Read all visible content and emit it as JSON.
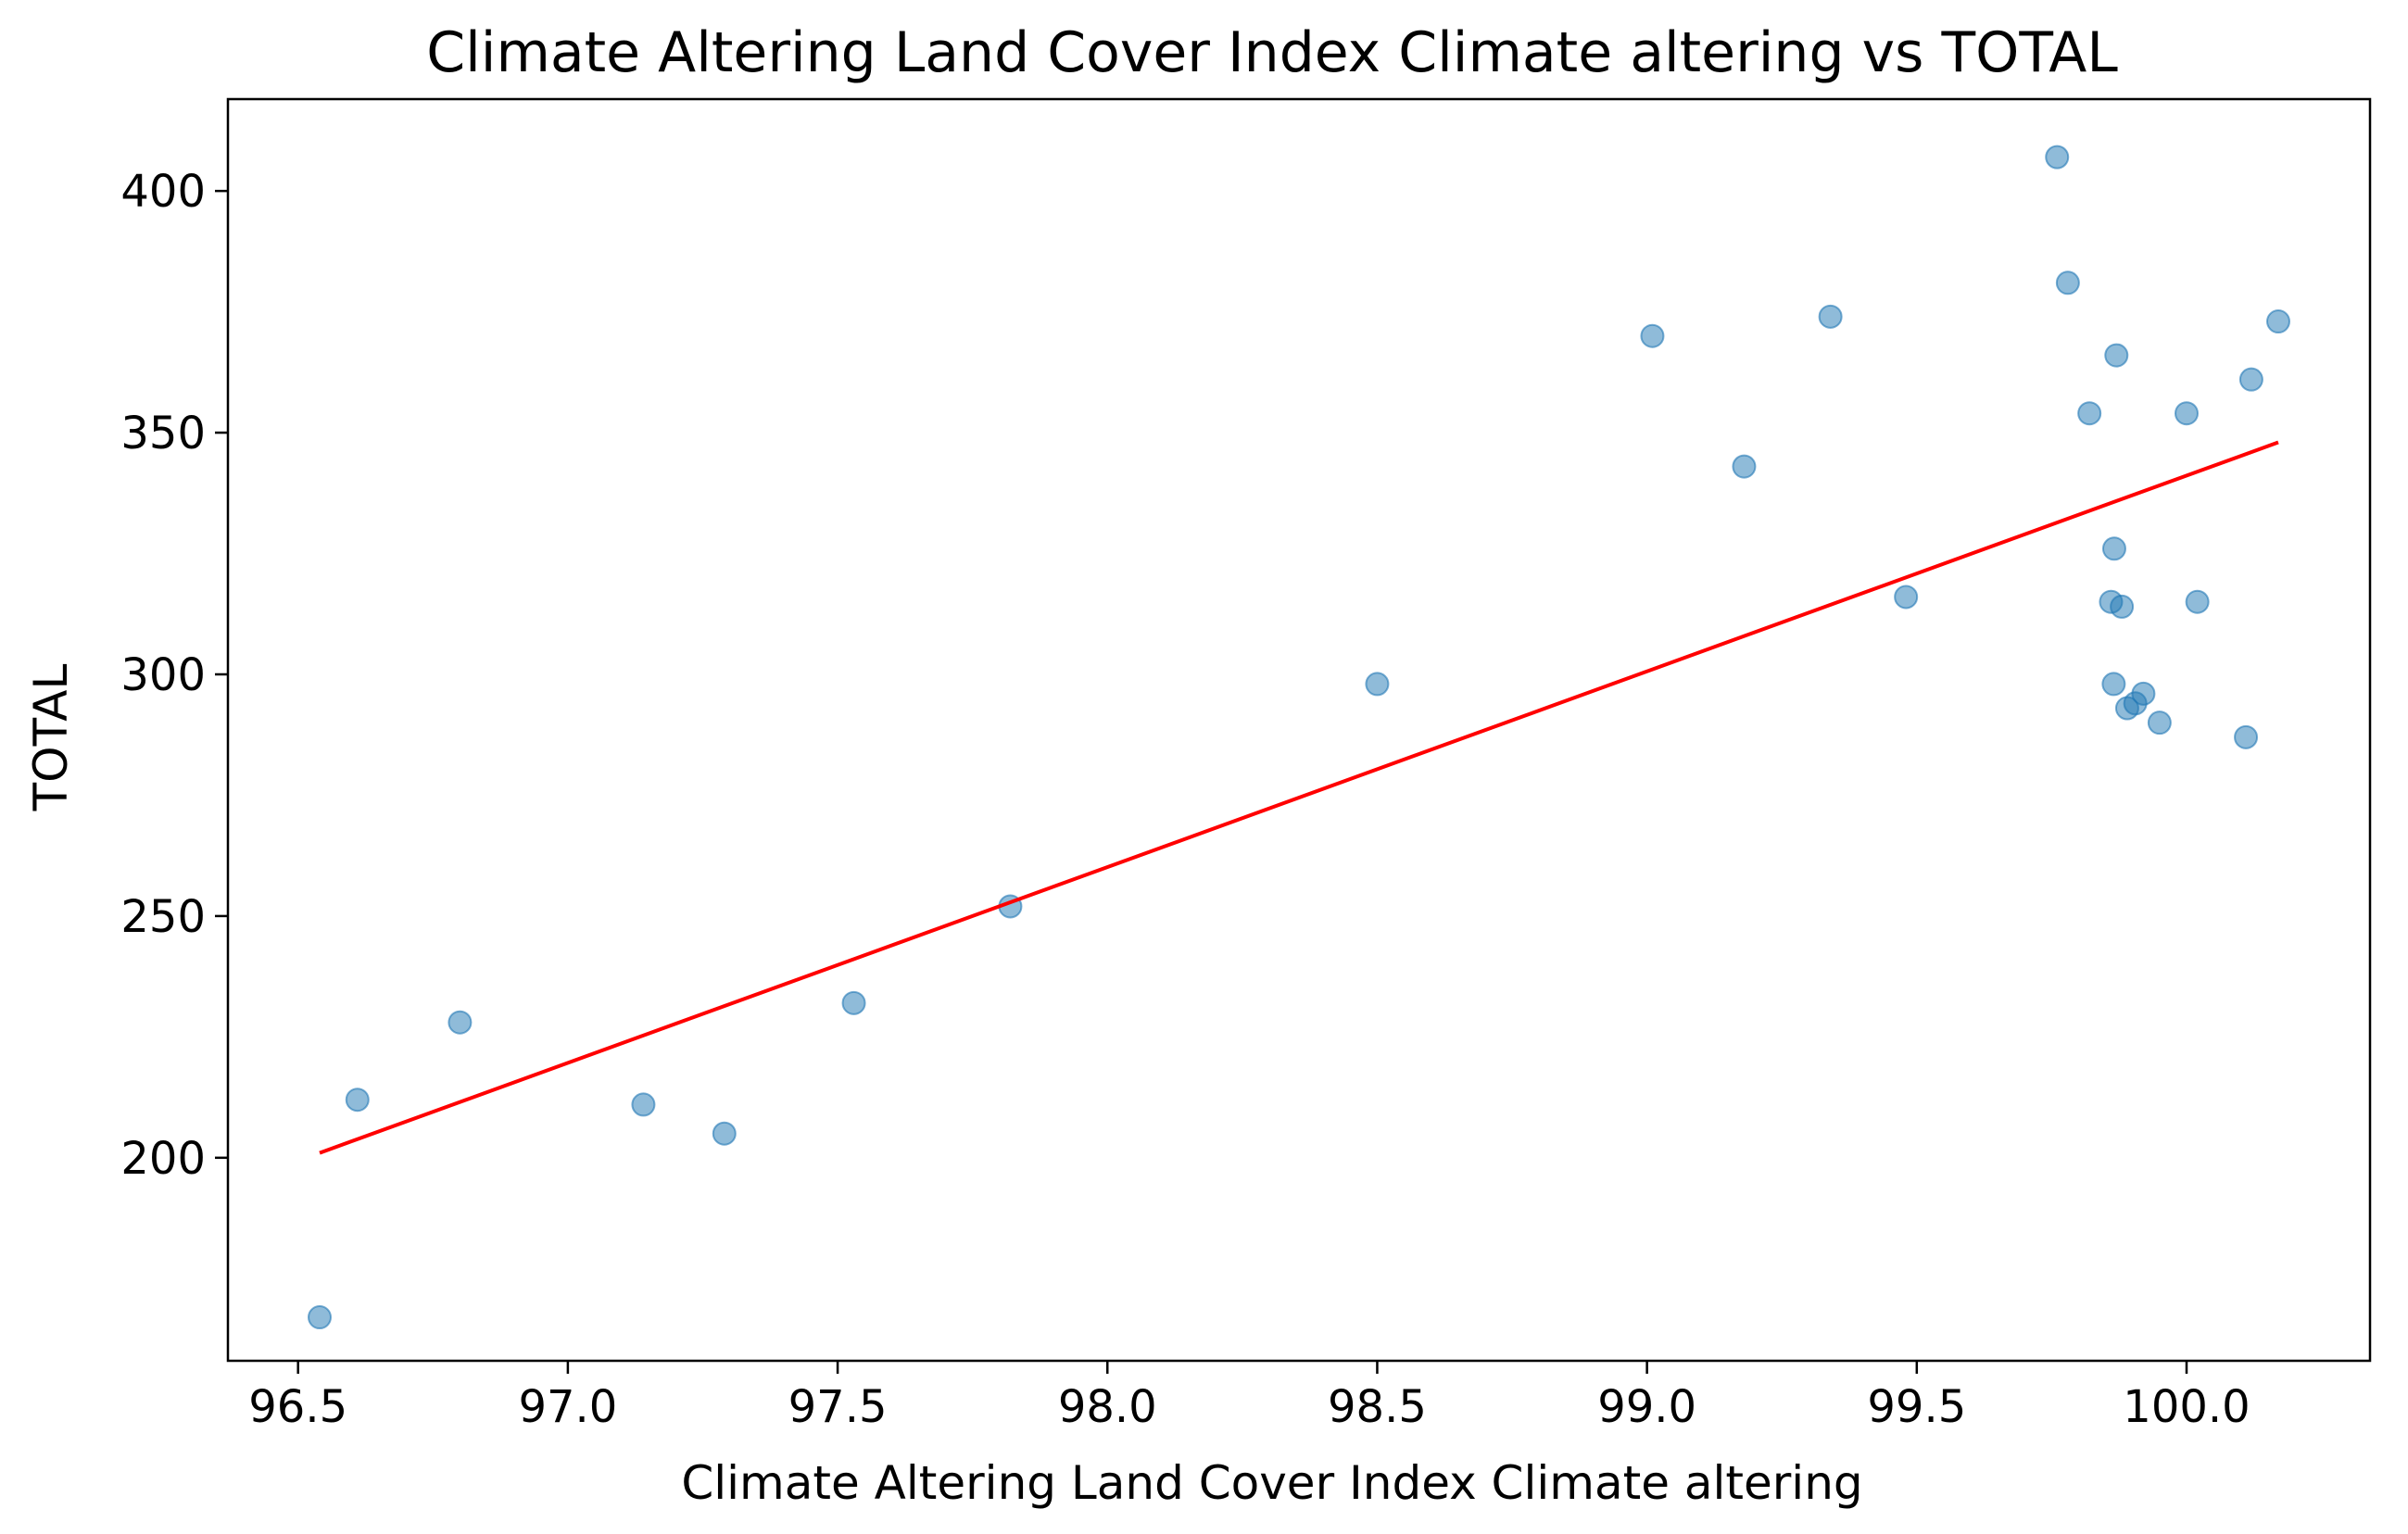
{
  "chart_data": {
    "type": "scatter",
    "title": "Climate Altering Land Cover Index Climate altering vs TOTAL",
    "xlabel": "Climate Altering Land Cover Index Climate altering",
    "ylabel": "TOTAL",
    "xlim": [
      96.37,
      100.34
    ],
    "ylim": [
      158,
      419
    ],
    "x_ticks": [
      96.5,
      97.0,
      97.5,
      98.0,
      98.5,
      99.0,
      99.5,
      100.0
    ],
    "x_tick_labels": [
      "96.5",
      "97.0",
      "97.5",
      "98.0",
      "98.5",
      "99.0",
      "99.5",
      "100.0"
    ],
    "y_ticks": [
      200,
      250,
      300,
      350,
      400
    ],
    "y_tick_labels": [
      "200",
      "250",
      "300",
      "350",
      "400"
    ],
    "grid": false,
    "points_color": "#1f77b4",
    "fit_line_color": "#ff0000",
    "points": [
      {
        "x": 96.54,
        "y": 167
      },
      {
        "x": 96.61,
        "y": 212
      },
      {
        "x": 96.8,
        "y": 228
      },
      {
        "x": 97.14,
        "y": 211
      },
      {
        "x": 97.29,
        "y": 205
      },
      {
        "x": 97.53,
        "y": 232
      },
      {
        "x": 97.82,
        "y": 252
      },
      {
        "x": 98.5,
        "y": 298
      },
      {
        "x": 99.01,
        "y": 370
      },
      {
        "x": 99.18,
        "y": 343
      },
      {
        "x": 99.34,
        "y": 374
      },
      {
        "x": 99.48,
        "y": 316
      },
      {
        "x": 99.76,
        "y": 407
      },
      {
        "x": 99.78,
        "y": 381
      },
      {
        "x": 99.82,
        "y": 354
      },
      {
        "x": 99.86,
        "y": 315
      },
      {
        "x": 99.865,
        "y": 298
      },
      {
        "x": 99.866,
        "y": 326
      },
      {
        "x": 99.87,
        "y": 366
      },
      {
        "x": 99.88,
        "y": 314
      },
      {
        "x": 99.89,
        "y": 293
      },
      {
        "x": 99.905,
        "y": 294
      },
      {
        "x": 99.92,
        "y": 296
      },
      {
        "x": 99.95,
        "y": 290
      },
      {
        "x": 100.0,
        "y": 354
      },
      {
        "x": 100.02,
        "y": 315
      },
      {
        "x": 100.11,
        "y": 287
      },
      {
        "x": 100.12,
        "y": 361
      },
      {
        "x": 100.17,
        "y": 373
      }
    ],
    "fit_line": {
      "x": [
        96.54,
        100.17
      ],
      "y": [
        201,
        348
      ]
    }
  }
}
